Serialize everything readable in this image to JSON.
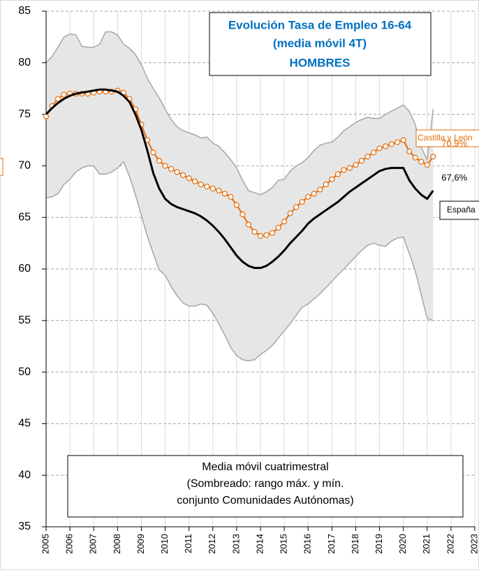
{
  "chart_data": {
    "type": "line",
    "title": [
      "Evolución Tasa de Empleo 16-64",
      "(media móvil 4T)",
      "HOMBRES"
    ],
    "annotation": [
      "Media móvil cuatrimestral",
      "(Sombreado: rango máx. y mín.",
      "conjunto Comunidades Autónomas)"
    ],
    "x": [
      2005,
      2005.25,
      2005.5,
      2005.75,
      2006,
      2006.25,
      2006.5,
      2006.75,
      2007,
      2007.25,
      2007.5,
      2007.75,
      2008,
      2008.25,
      2008.5,
      2008.75,
      2009,
      2009.25,
      2009.5,
      2009.75,
      2010,
      2010.25,
      2010.5,
      2010.75,
      2011,
      2011.25,
      2011.5,
      2011.75,
      2012,
      2012.25,
      2012.5,
      2012.75,
      2013,
      2013.25,
      2013.5,
      2013.75,
      2014,
      2014.25,
      2014.5,
      2014.75,
      2015,
      2015.25,
      2015.5,
      2015.75,
      2016,
      2016.25,
      2016.5,
      2016.75,
      2017,
      2017.25,
      2017.5,
      2017.75,
      2018,
      2018.25,
      2018.5,
      2018.75,
      2019,
      2019.25,
      2019.5,
      2019.75,
      2020,
      2020.25,
      2020.5,
      2020.75,
      2021,
      2021.25
    ],
    "series": [
      {
        "name": "Castilla y León",
        "color": "#e46c0a",
        "markers": true,
        "values": [
          74.8,
          75.8,
          76.5,
          76.9,
          77.0,
          77.0,
          77.0,
          77.0,
          77.1,
          77.2,
          77.2,
          77.2,
          77.3,
          77.1,
          76.5,
          75.5,
          74.0,
          72.5,
          71.3,
          70.5,
          70.0,
          69.7,
          69.4,
          69.1,
          68.8,
          68.5,
          68.2,
          68.0,
          67.8,
          67.6,
          67.3,
          67.0,
          66.2,
          65.3,
          64.3,
          63.6,
          63.2,
          63.3,
          63.5,
          64.0,
          64.6,
          65.4,
          66.0,
          66.5,
          67.0,
          67.3,
          67.7,
          68.2,
          68.7,
          69.2,
          69.6,
          69.8,
          70.1,
          70.5,
          70.9,
          71.3,
          71.7,
          71.9,
          72.1,
          72.3,
          72.5,
          71.4,
          70.8,
          70.4,
          70.1,
          70.9
        ],
        "value_labels": [
          null,
          null,
          null,
          null,
          null,
          null,
          null,
          null,
          null,
          null,
          null,
          null,
          null,
          null,
          null,
          null,
          null,
          null,
          null,
          null,
          null,
          null,
          null,
          null,
          null,
          null,
          null,
          null,
          null,
          null,
          null,
          null,
          null,
          null,
          null,
          null,
          null,
          null,
          null,
          null,
          null,
          null,
          null,
          null,
          null,
          null,
          null,
          null,
          null,
          null,
          null,
          null,
          null,
          null,
          null,
          null,
          null,
          null,
          null,
          null,
          null,
          null,
          null,
          null,
          null,
          "70,9%"
        ]
      },
      {
        "name": "España",
        "color": "#000000",
        "markers": false,
        "values": [
          75.0,
          75.6,
          76.1,
          76.5,
          76.8,
          77.0,
          77.1,
          77.2,
          77.3,
          77.4,
          77.4,
          77.3,
          77.2,
          76.8,
          76.2,
          75.0,
          73.5,
          71.5,
          69.3,
          67.8,
          66.8,
          66.3,
          66.0,
          65.8,
          65.6,
          65.4,
          65.1,
          64.7,
          64.2,
          63.6,
          62.9,
          62.1,
          61.3,
          60.7,
          60.3,
          60.1,
          60.1,
          60.3,
          60.7,
          61.2,
          61.8,
          62.5,
          63.1,
          63.7,
          64.4,
          64.9,
          65.3,
          65.7,
          66.1,
          66.5,
          67.0,
          67.5,
          67.9,
          68.3,
          68.7,
          69.1,
          69.5,
          69.7,
          69.8,
          69.8,
          69.8,
          68.6,
          67.8,
          67.2,
          66.8,
          67.6
        ],
        "value_labels": [
          null,
          null,
          null,
          null,
          null,
          null,
          null,
          null,
          null,
          null,
          null,
          null,
          null,
          null,
          null,
          null,
          null,
          null,
          null,
          null,
          null,
          null,
          null,
          null,
          null,
          null,
          null,
          null,
          null,
          null,
          null,
          null,
          null,
          null,
          null,
          null,
          null,
          null,
          null,
          null,
          null,
          null,
          null,
          null,
          null,
          null,
          null,
          null,
          null,
          null,
          null,
          null,
          null,
          null,
          null,
          null,
          null,
          null,
          null,
          null,
          null,
          null,
          null,
          null,
          null,
          "67,6%"
        ]
      }
    ],
    "band": {
      "fill": "#e6e6e6",
      "edge_color": "#a6a6a6",
      "upper": [
        80.0,
        80.6,
        81.5,
        82.5,
        82.8,
        82.7,
        81.6,
        81.5,
        81.5,
        81.8,
        83.0,
        83.0,
        82.7,
        81.8,
        81.4,
        80.8,
        79.8,
        78.5,
        77.5,
        76.6,
        75.5,
        74.5,
        73.8,
        73.4,
        73.2,
        73.0,
        72.7,
        72.8,
        72.2,
        71.9,
        71.3,
        70.6,
        69.8,
        68.6,
        67.6,
        67.4,
        67.2,
        67.5,
        67.9,
        68.6,
        68.7,
        69.5,
        70.0,
        70.3,
        70.8,
        71.5,
        72.0,
        72.2,
        72.3,
        72.8,
        73.4,
        73.8,
        74.2,
        74.5,
        74.7,
        74.6,
        74.6,
        75.0,
        75.3,
        75.6,
        75.9,
        75.3,
        74.0,
        71.8,
        70.6,
        75.5
      ],
      "lower": [
        66.9,
        67.0,
        67.3,
        68.2,
        68.7,
        69.4,
        69.8,
        70.0,
        70.0,
        69.2,
        69.2,
        69.4,
        69.8,
        70.4,
        69.0,
        67.2,
        65.2,
        63.2,
        61.5,
        59.9,
        59.4,
        58.3,
        57.4,
        56.7,
        56.4,
        56.4,
        56.6,
        56.5,
        55.7,
        54.7,
        53.6,
        52.4,
        51.6,
        51.2,
        51.1,
        51.2,
        51.7,
        52.1,
        52.6,
        53.3,
        54.0,
        54.7,
        55.5,
        56.3,
        56.6,
        57.1,
        57.6,
        58.2,
        58.8,
        59.4,
        60.0,
        60.6,
        61.2,
        61.8,
        62.3,
        62.5,
        62.3,
        62.2,
        62.7,
        63.0,
        63.1,
        61.5,
        59.8,
        57.5,
        55.2,
        55.0
      ]
    },
    "xlim": [
      2005,
      2023
    ],
    "xticks": [
      2005,
      2006,
      2007,
      2008,
      2009,
      2010,
      2011,
      2012,
      2013,
      2014,
      2015,
      2016,
      2017,
      2018,
      2019,
      2020,
      2021,
      2022,
      2023
    ],
    "ylim": [
      35,
      85
    ],
    "yticks": [
      35,
      40,
      45,
      50,
      55,
      60,
      65,
      70,
      75,
      80,
      85
    ],
    "grid": true
  }
}
